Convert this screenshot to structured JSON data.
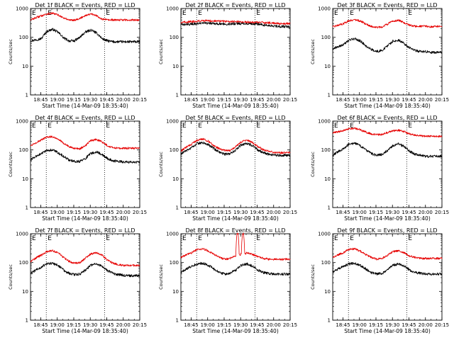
{
  "figure": {
    "y_axis_label": "Counts/sec",
    "x_axis_label": "Start Time (14-Mar-09 18:35:40)",
    "marker_E": "E",
    "colors": {
      "events": "#000000",
      "lld": "#e60000",
      "axes": "#000000",
      "background": "#ffffff"
    }
  },
  "chart_data": [
    {
      "type": "line",
      "title": "Det 1f BLACK = Events, RED = LLD",
      "x_tick_labels": [
        "18:45",
        "19:00",
        "19:15",
        "19:30",
        "19:45",
        "20:00",
        "20:15"
      ],
      "y_tick_labels": [
        "1",
        "10",
        "100",
        "1000"
      ],
      "ylim": [
        1,
        1000
      ],
      "y_scale": "log",
      "xlim": [
        "18:35:40",
        "20:15"
      ],
      "dotted_vlines": [
        "18:50",
        "19:43"
      ],
      "series": [
        {
          "name": "Events",
          "color": "#000000",
          "x_min": [
            0,
            10,
            15,
            20,
            25,
            30,
            35,
            40,
            45,
            50,
            55,
            60,
            65,
            70,
            75,
            80,
            85,
            90,
            95,
            99
          ],
          "y": [
            75,
            90,
            160,
            190,
            150,
            95,
            75,
            75,
            100,
            150,
            180,
            140,
            90,
            75,
            70,
            70,
            70,
            70,
            70,
            70
          ]
        },
        {
          "name": "LLD",
          "color": "#e60000",
          "x_min": [
            0,
            10,
            15,
            20,
            25,
            30,
            35,
            40,
            45,
            50,
            55,
            60,
            65,
            70,
            75,
            80,
            85,
            90,
            95,
            99
          ],
          "y": [
            400,
            560,
            650,
            680,
            600,
            470,
            400,
            400,
            450,
            580,
            640,
            560,
            430,
            400,
            400,
            400,
            400,
            400,
            400,
            400
          ]
        }
      ]
    },
    {
      "type": "line",
      "title": "Det 2f BLACK = Events, RED = LLD",
      "x_tick_labels": [
        "18:45",
        "19:00",
        "19:15",
        "19:30",
        "19:45",
        "20:00",
        "20:15"
      ],
      "y_tick_labels": [
        "1",
        "10",
        "100",
        "1000"
      ],
      "ylim": [
        1,
        1000
      ],
      "y_scale": "log",
      "xlim": [
        "18:35:40",
        "20:15"
      ],
      "dotted_vlines": [
        "18:50",
        "19:43"
      ],
      "series": [
        {
          "name": "Events",
          "color": "#000000",
          "x_min": [
            0,
            10,
            20,
            30,
            40,
            50,
            60,
            70,
            80,
            90,
            99
          ],
          "y": [
            270,
            290,
            310,
            300,
            290,
            300,
            300,
            290,
            250,
            240,
            230
          ]
        },
        {
          "name": "LLD",
          "color": "#e60000",
          "x_min": [
            0,
            10,
            20,
            30,
            40,
            50,
            60,
            70,
            80,
            90,
            99
          ],
          "y": [
            330,
            350,
            380,
            370,
            360,
            350,
            340,
            330,
            320,
            300,
            300
          ]
        }
      ]
    },
    {
      "type": "line",
      "title": "Det 3f BLACK = Events, RED = LLD",
      "x_tick_labels": [
        "18:45",
        "19:00",
        "19:15",
        "19:30",
        "19:45",
        "20:00",
        "20:15"
      ],
      "y_tick_labels": [
        "1",
        "10",
        "100",
        "1000"
      ],
      "ylim": [
        1,
        1000
      ],
      "y_scale": "log",
      "xlim": [
        "18:35:40",
        "20:15"
      ],
      "dotted_vlines": [
        "18:50",
        "19:43"
      ],
      "series": [
        {
          "name": "Events",
          "color": "#000000",
          "x_min": [
            0,
            10,
            15,
            20,
            25,
            30,
            35,
            40,
            45,
            50,
            55,
            60,
            65,
            70,
            75,
            80,
            85,
            90,
            95,
            99
          ],
          "y": [
            40,
            55,
            80,
            90,
            75,
            50,
            38,
            32,
            35,
            50,
            75,
            80,
            60,
            42,
            35,
            32,
            32,
            30,
            30,
            30
          ]
        },
        {
          "name": "LLD",
          "color": "#e60000",
          "x_min": [
            0,
            10,
            15,
            20,
            25,
            30,
            35,
            40,
            45,
            50,
            55,
            60,
            65,
            70,
            75,
            80,
            85,
            90,
            95,
            99
          ],
          "y": [
            230,
            300,
            380,
            410,
            370,
            290,
            240,
            220,
            230,
            290,
            370,
            390,
            320,
            260,
            240,
            240,
            240,
            230,
            240,
            240
          ]
        }
      ]
    },
    {
      "type": "line",
      "title": "Det 4f BLACK = Events, RED = LLD",
      "x_tick_labels": [
        "18:45",
        "19:00",
        "19:15",
        "19:30",
        "19:45",
        "20:00",
        "20:15"
      ],
      "y_tick_labels": [
        "1",
        "10",
        "100",
        "1000"
      ],
      "ylim": [
        1,
        1000
      ],
      "y_scale": "log",
      "xlim": [
        "18:35:40",
        "20:15"
      ],
      "dotted_vlines": [
        "18:50",
        "19:43"
      ],
      "series": [
        {
          "name": "Events",
          "color": "#000000",
          "x_min": [
            0,
            10,
            15,
            20,
            25,
            30,
            35,
            40,
            45,
            50,
            55,
            60,
            65,
            70,
            75,
            80,
            85,
            90,
            95,
            99
          ],
          "y": [
            45,
            75,
            95,
            100,
            80,
            60,
            45,
            40,
            40,
            50,
            75,
            85,
            70,
            50,
            42,
            40,
            38,
            38,
            38,
            38
          ]
        },
        {
          "name": "LLD",
          "color": "#e60000",
          "x_min": [
            0,
            10,
            15,
            20,
            25,
            30,
            35,
            40,
            45,
            50,
            55,
            60,
            65,
            70,
            75,
            80,
            85,
            90,
            95,
            99
          ],
          "y": [
            140,
            220,
            280,
            290,
            240,
            170,
            130,
            110,
            110,
            140,
            210,
            230,
            190,
            140,
            120,
            115,
            115,
            115,
            115,
            115
          ]
        }
      ]
    },
    {
      "type": "line",
      "title": "Det 5f BLACK = Events, RED = LLD",
      "x_tick_labels": [
        "18:45",
        "19:00",
        "19:15",
        "19:30",
        "19:45",
        "20:00",
        "20:15"
      ],
      "y_tick_labels": [
        "1",
        "10",
        "100",
        "1000"
      ],
      "ylim": [
        1,
        1000
      ],
      "y_scale": "log",
      "xlim": [
        "18:35:40",
        "20:15"
      ],
      "dotted_vlines": [
        "18:50",
        "19:43"
      ],
      "series": [
        {
          "name": "Events",
          "color": "#000000",
          "x_min": [
            0,
            10,
            15,
            20,
            25,
            30,
            35,
            40,
            45,
            50,
            55,
            60,
            65,
            70,
            75,
            80,
            85,
            90,
            95,
            99
          ],
          "y": [
            70,
            120,
            170,
            180,
            150,
            110,
            85,
            70,
            75,
            100,
            150,
            170,
            140,
            100,
            80,
            70,
            65,
            65,
            65,
            65
          ]
        },
        {
          "name": "LLD",
          "color": "#e60000",
          "x_min": [
            0,
            10,
            15,
            20,
            25,
            30,
            35,
            40,
            45,
            50,
            55,
            60,
            65,
            70,
            75,
            80,
            85,
            90,
            95,
            99
          ],
          "y": [
            90,
            160,
            220,
            240,
            200,
            140,
            110,
            95,
            95,
            130,
            190,
            220,
            180,
            130,
            100,
            90,
            80,
            80,
            80,
            80
          ]
        }
      ]
    },
    {
      "type": "line",
      "title": "Det 6f BLACK = Events, RED = LLD",
      "x_tick_labels": [
        "18:45",
        "19:00",
        "19:15",
        "19:30",
        "19:45",
        "20:00",
        "20:15"
      ],
      "y_tick_labels": [
        "1",
        "10",
        "100",
        "1000"
      ],
      "ylim": [
        1,
        1000
      ],
      "y_scale": "log",
      "xlim": [
        "18:35:40",
        "20:15"
      ],
      "dotted_vlines": [
        "18:50",
        "19:43"
      ],
      "series": [
        {
          "name": "Events",
          "color": "#000000",
          "x_min": [
            0,
            10,
            15,
            20,
            25,
            30,
            35,
            40,
            45,
            50,
            55,
            60,
            65,
            70,
            75,
            80,
            85,
            90,
            95,
            99
          ],
          "y": [
            65,
            110,
            160,
            170,
            140,
            100,
            75,
            65,
            70,
            95,
            140,
            160,
            130,
            90,
            70,
            65,
            60,
            60,
            60,
            60
          ]
        },
        {
          "name": "LLD",
          "color": "#e60000",
          "x_min": [
            0,
            10,
            15,
            20,
            25,
            30,
            35,
            40,
            45,
            50,
            55,
            60,
            65,
            70,
            75,
            80,
            85,
            90,
            95,
            99
          ],
          "y": [
            390,
            470,
            540,
            560,
            500,
            420,
            360,
            340,
            350,
            400,
            460,
            480,
            430,
            360,
            320,
            310,
            300,
            300,
            300,
            300
          ]
        }
      ]
    },
    {
      "type": "line",
      "title": "Det 7f BLACK = Events, RED = LLD",
      "x_tick_labels": [
        "18:45",
        "19:00",
        "19:15",
        "19:30",
        "19:45",
        "20:00",
        "20:15"
      ],
      "y_tick_labels": [
        "1",
        "10",
        "100",
        "1000"
      ],
      "ylim": [
        1,
        1000
      ],
      "y_scale": "log",
      "xlim": [
        "18:35:40",
        "20:15"
      ],
      "dotted_vlines": [
        "18:50",
        "19:43"
      ],
      "series": [
        {
          "name": "Events",
          "color": "#000000",
          "x_min": [
            0,
            10,
            15,
            20,
            25,
            30,
            35,
            40,
            45,
            50,
            55,
            60,
            65,
            70,
            75,
            80,
            85,
            90,
            95,
            99
          ],
          "y": [
            40,
            70,
            90,
            95,
            80,
            55,
            42,
            38,
            40,
            55,
            80,
            90,
            75,
            52,
            42,
            38,
            36,
            35,
            35,
            35
          ]
        },
        {
          "name": "LLD",
          "color": "#e60000",
          "x_min": [
            0,
            10,
            15,
            20,
            25,
            30,
            35,
            40,
            45,
            50,
            55,
            60,
            65,
            70,
            75,
            80,
            85,
            90,
            95,
            99
          ],
          "y": [
            110,
            180,
            240,
            260,
            220,
            150,
            110,
            95,
            100,
            140,
            200,
            220,
            180,
            120,
            95,
            85,
            80,
            80,
            80,
            80
          ]
        }
      ]
    },
    {
      "type": "line",
      "title": "Det 8f BLACK = Events, RED = LLD",
      "x_tick_labels": [
        "18:45",
        "19:00",
        "19:15",
        "19:30",
        "19:45",
        "20:00",
        "20:15"
      ],
      "y_tick_labels": [
        "1",
        "10",
        "100",
        "1000"
      ],
      "ylim": [
        1,
        1000
      ],
      "y_scale": "log",
      "xlim": [
        "18:35:40",
        "20:15"
      ],
      "dotted_vlines": [
        "18:50",
        "19:43"
      ],
      "series": [
        {
          "name": "Events",
          "color": "#000000",
          "x_min": [
            0,
            10,
            15,
            20,
            25,
            30,
            35,
            40,
            45,
            50,
            55,
            60,
            65,
            70,
            75,
            80,
            85,
            90,
            95,
            99
          ],
          "y": [
            45,
            75,
            90,
            95,
            80,
            60,
            45,
            40,
            42,
            55,
            80,
            90,
            75,
            55,
            45,
            42,
            40,
            40,
            40,
            40
          ]
        },
        {
          "name": "LLD",
          "color": "#e60000",
          "x_min": [
            0,
            10,
            15,
            20,
            25,
            30,
            35,
            40,
            45,
            50,
            51,
            52,
            53,
            54,
            55,
            56,
            57,
            58,
            59,
            60,
            65,
            70,
            75,
            80,
            85,
            90,
            95,
            99
          ],
          "y": [
            150,
            220,
            290,
            300,
            250,
            190,
            150,
            130,
            140,
            170,
            1000,
            1000,
            180,
            190,
            200,
            1000,
            1000,
            190,
            210,
            220,
            190,
            160,
            140,
            130,
            130,
            130,
            130,
            130
          ]
        }
      ]
    },
    {
      "type": "line",
      "title": "Det 9f BLACK = Events, RED = LLD",
      "x_tick_labels": [
        "18:45",
        "19:00",
        "19:15",
        "19:30",
        "19:45",
        "20:00",
        "20:15"
      ],
      "y_tick_labels": [
        "1",
        "10",
        "100",
        "1000"
      ],
      "ylim": [
        1,
        1000
      ],
      "y_scale": "log",
      "xlim": [
        "18:35:40",
        "20:15"
      ],
      "dotted_vlines": [
        "18:50",
        "19:43"
      ],
      "series": [
        {
          "name": "Events",
          "color": "#000000",
          "x_min": [
            0,
            10,
            15,
            20,
            25,
            30,
            35,
            40,
            45,
            50,
            55,
            60,
            65,
            70,
            75,
            80,
            85,
            90,
            95,
            99
          ],
          "y": [
            45,
            75,
            90,
            95,
            80,
            60,
            45,
            40,
            42,
            55,
            80,
            90,
            75,
            55,
            45,
            42,
            40,
            40,
            40,
            40
          ]
        },
        {
          "name": "LLD",
          "color": "#e60000",
          "x_min": [
            0,
            10,
            15,
            20,
            25,
            30,
            35,
            40,
            45,
            50,
            55,
            60,
            65,
            70,
            75,
            80,
            85,
            90,
            95,
            99
          ],
          "y": [
            150,
            220,
            290,
            300,
            250,
            190,
            150,
            130,
            140,
            180,
            240,
            260,
            220,
            170,
            150,
            140,
            140,
            140,
            140,
            140
          ]
        }
      ]
    }
  ]
}
